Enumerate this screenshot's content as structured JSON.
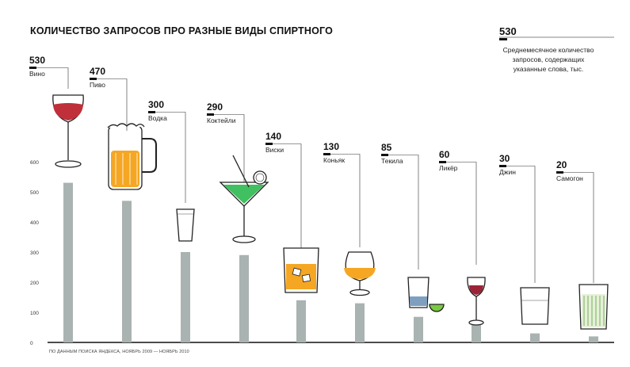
{
  "title": "КОЛИЧЕСТВО ЗАПРОСОВ ПРО РАЗНЫЕ ВИДЫ СПИРТНОГО",
  "legend": {
    "value": "530",
    "description": "Среднемесячное количество запросов, содержащих указанные слова, тыс."
  },
  "source": "ПО ДАННЫМ ПОИСКА ЯНДЕКСА, НОЯБРЬ 2009 — НОЯБРЬ 2010",
  "colors": {
    "bar": "#a9b3b1",
    "axis": "#111111",
    "wine": "#c0303a",
    "beer": "#f5a623",
    "cocktail": "#40c060"
  },
  "chart_data": {
    "type": "bar",
    "categories": [
      "Вино",
      "Пиво",
      "Водка",
      "Коктейли",
      "Виски",
      "Коньяк",
      "Текила",
      "Ликёр",
      "Джин",
      "Самогон"
    ],
    "values": [
      530,
      470,
      300,
      290,
      140,
      130,
      85,
      60,
      30,
      20
    ],
    "value_labels": [
      "530",
      "470",
      "300",
      "290",
      "140",
      "130",
      "85",
      "60",
      "30",
      "20"
    ],
    "icons": [
      "wine-glass-icon",
      "beer-mug-icon",
      "vodka-shot-icon",
      "cocktail-glass-icon",
      "whiskey-glass-icon",
      "cognac-snifter-icon",
      "tequila-shot-icon",
      "liqueur-glass-icon",
      "gin-glass-icon",
      "moonshine-glass-icon"
    ],
    "yticks": [
      "0",
      "100",
      "200",
      "300",
      "400",
      "500",
      "600"
    ],
    "ylim": [
      0,
      600
    ],
    "grid": false
  }
}
